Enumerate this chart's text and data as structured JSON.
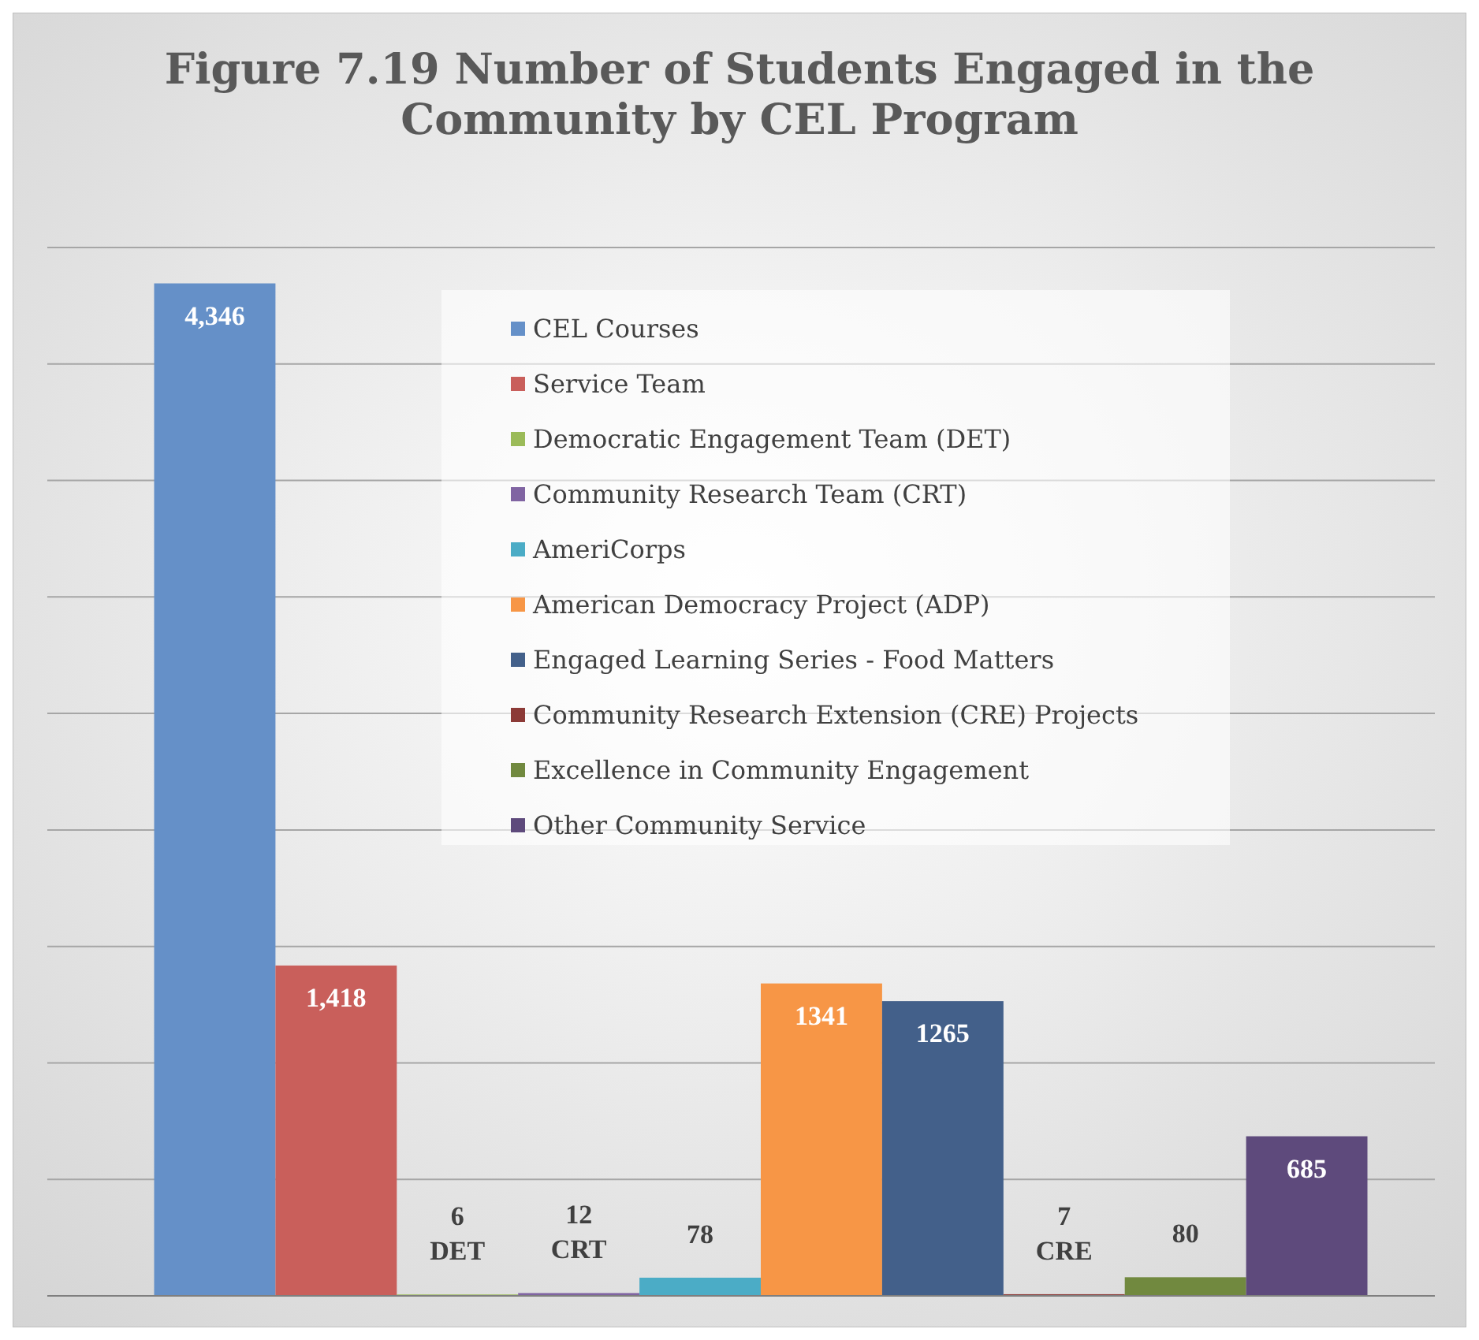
{
  "chart_data": {
    "type": "bar",
    "title": "Figure 7.19 Number of Students Engaged in the Community by CEL Program",
    "categories": [
      null
    ],
    "series": [
      {
        "name": "CEL Courses",
        "color": "#6590c8",
        "values": [
          4346
        ],
        "value_labels": [
          "4,346"
        ]
      },
      {
        "name": "Service Team",
        "color": "#c95f5b",
        "values": [
          1418
        ],
        "value_labels": [
          "1,418"
        ]
      },
      {
        "name": "Democratic Engagement Team (DET)",
        "color": "#9bbb59",
        "values": [
          6
        ],
        "value_labels": [
          "6\nDET"
        ]
      },
      {
        "name": "Community Research Team (CRT)",
        "color": "#8064a2",
        "values": [
          12
        ],
        "value_labels": [
          "12\nCRT"
        ]
      },
      {
        "name": "AmeriCorps",
        "color": "#4bacc6",
        "values": [
          78
        ],
        "value_labels": [
          "78"
        ]
      },
      {
        "name": "American Democracy Project (ADP)",
        "color": "#f79646",
        "values": [
          1341
        ],
        "value_labels": [
          "1341"
        ]
      },
      {
        "name": "Engaged Learning Series - Food Matters",
        "color": "#43608a",
        "values": [
          1265
        ],
        "value_labels": [
          "1265"
        ]
      },
      {
        "name": "Community Research Extension (CRE) Projects",
        "color": "#8c3a37",
        "values": [
          7
        ],
        "value_labels": [
          "7\nCRE"
        ]
      },
      {
        "name": "Excellence in Community Engagement",
        "color": "#71893f",
        "values": [
          80
        ],
        "value_labels": [
          "80"
        ]
      },
      {
        "name": "Other Community Service",
        "color": "#5e4a7c",
        "values": [
          685
        ],
        "value_labels": [
          "685"
        ]
      }
    ],
    "ylim": [
      0,
      4500
    ],
    "yticks": [
      {
        "value": 0,
        "label": null
      },
      {
        "value": 500,
        "label": null
      },
      {
        "value": 1000,
        "label": null
      },
      {
        "value": 1500,
        "label": null
      },
      {
        "value": 2000,
        "label": null
      },
      {
        "value": 2500,
        "label": null
      },
      {
        "value": 3000,
        "label": null
      },
      {
        "value": 3500,
        "label": null
      },
      {
        "value": 4000,
        "label": null
      },
      {
        "value": 4500,
        "label": null
      }
    ],
    "grid": "y",
    "legend": "top right"
  }
}
